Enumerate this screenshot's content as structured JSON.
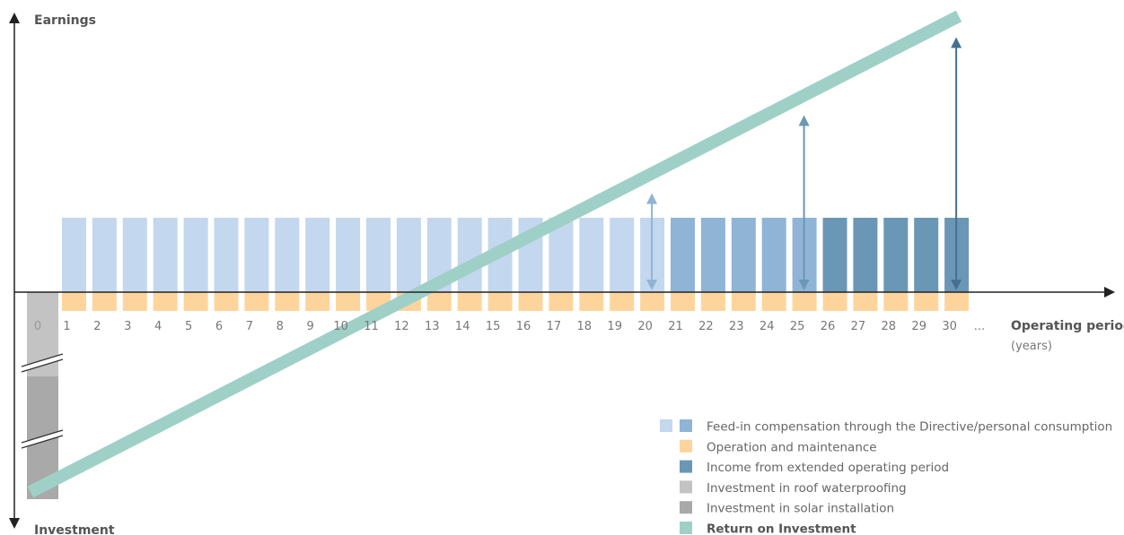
{
  "chart_data": {
    "type": "bar",
    "y_axis_top_label": "Earnings",
    "y_axis_bottom_label": "Investment",
    "x_axis_label": "Operating period",
    "x_axis_unit": "(years)",
    "x_tick_zero": "0",
    "x_ticks": [
      "1",
      "2",
      "3",
      "4",
      "5",
      "6",
      "7",
      "8",
      "9",
      "10",
      "11",
      "12",
      "13",
      "14",
      "15",
      "16",
      "17",
      "18",
      "19",
      "20",
      "21",
      "22",
      "23",
      "24",
      "25",
      "26",
      "27",
      "28",
      "29",
      "30"
    ],
    "x_tick_ellipsis": "...",
    "income_levels": {
      "directive_years": [
        1,
        20
      ],
      "consumption_years": [
        21,
        25
      ],
      "extended_years": [
        26,
        30
      ]
    },
    "colors": {
      "feed_in_light": "#c3d7ee",
      "feed_in_medium": "#8fb4d6",
      "operation_maintenance": "#fdd59c",
      "extended_income": "#6a97b5",
      "roof_waterproofing": "#c3c3c3",
      "solar_installation": "#a9a9a9",
      "return_on_investment": "#9fd0c8",
      "arrow_20": "#8fb4d6",
      "arrow_25": "#6a97b5",
      "arrow_30": "#47708f",
      "axis": "#222222"
    },
    "return_arrows_at_years": [
      20,
      25,
      30
    ],
    "legend": [
      {
        "label": "Feed-in compensation through the Directive/personal consumption",
        "swatches": [
          "feed_in_light",
          "feed_in_medium"
        ],
        "strong": false
      },
      {
        "label": "Operation and maintenance",
        "swatches": [
          "operation_maintenance"
        ],
        "strong": false
      },
      {
        "label": "Income from extended operating period",
        "swatches": [
          "extended_income"
        ],
        "strong": false
      },
      {
        "label": "Investment in roof waterproofing",
        "swatches": [
          "roof_waterproofing"
        ],
        "strong": false
      },
      {
        "label": "Investment in solar installation",
        "swatches": [
          "solar_installation"
        ],
        "strong": false
      },
      {
        "label": "Return on Investment",
        "swatches": [
          "return_on_investment"
        ],
        "strong": true
      }
    ]
  }
}
